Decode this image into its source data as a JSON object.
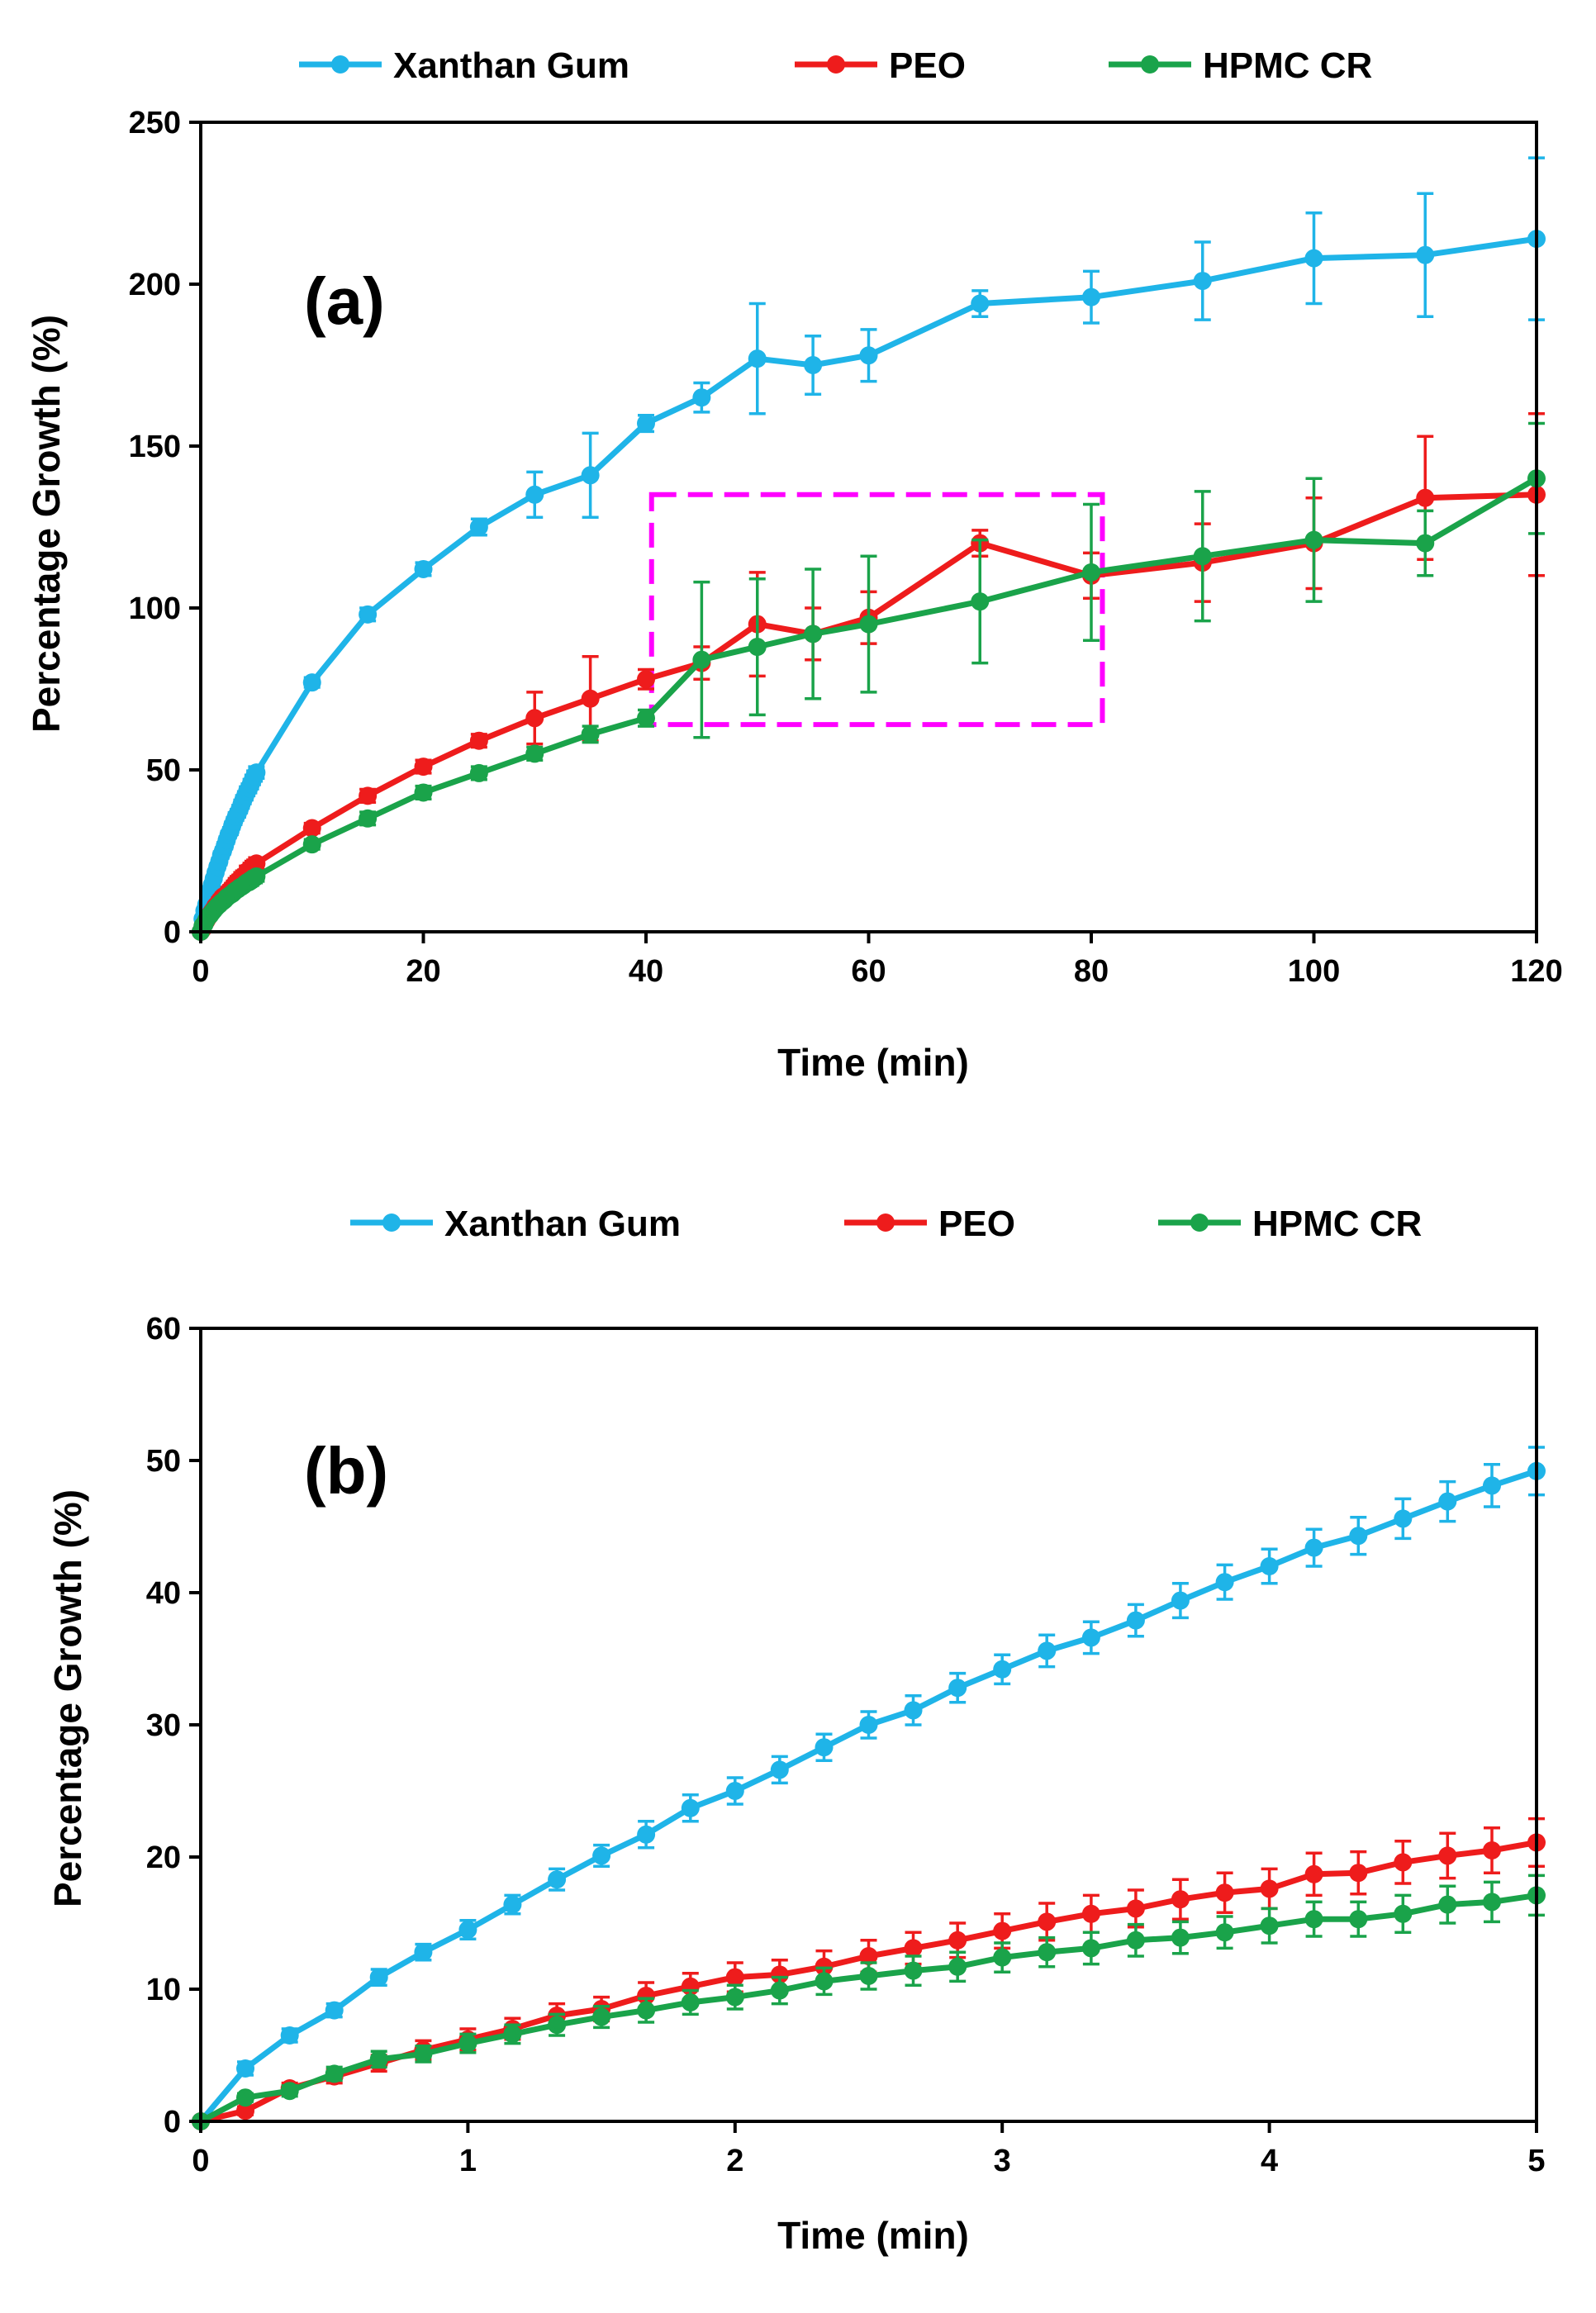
{
  "chart_data": [
    {
      "type": "line",
      "panel_label": "(a)",
      "xlabel": "Time (min)",
      "ylabel": "Percentage Growth (%)",
      "xlim": [
        0,
        120
      ],
      "ylim": [
        0,
        250
      ],
      "xticks": [
        0,
        20,
        40,
        60,
        80,
        100,
        120
      ],
      "yticks": [
        0,
        50,
        100,
        150,
        200,
        250
      ],
      "grid": false,
      "legend": {
        "placement": "top"
      },
      "highlight_box": {
        "x": [
          40.5,
          81
        ],
        "y": [
          64,
          135
        ],
        "color": "#ff00ff"
      },
      "series": [
        {
          "name": "Xanthan Gum",
          "color": "#1fb4e8",
          "x": [
            0,
            0.167,
            0.333,
            0.5,
            0.667,
            0.833,
            1,
            1.167,
            1.333,
            1.5,
            1.667,
            1.833,
            2,
            2.167,
            2.333,
            2.5,
            2.667,
            2.833,
            3,
            3.167,
            3.333,
            3.5,
            3.667,
            3.833,
            4,
            4.167,
            4.333,
            4.5,
            4.667,
            4.833,
            5,
            10,
            15,
            20,
            25,
            30,
            35,
            40,
            45,
            50,
            55,
            60,
            70,
            80,
            90,
            100,
            110,
            120
          ],
          "y": [
            0,
            4,
            6.5,
            8.4,
            10.9,
            12.8,
            14.5,
            16.4,
            18.3,
            20.1,
            21.7,
            23.7,
            25,
            26.6,
            28.3,
            30,
            31.1,
            32.8,
            34.2,
            35.6,
            36.6,
            37.9,
            39.4,
            40.8,
            42,
            43.4,
            44.3,
            45.6,
            46.9,
            48.1,
            49.2,
            77,
            98,
            112,
            125,
            135,
            141,
            157,
            165,
            177,
            175,
            178,
            194,
            196,
            201,
            208,
            209,
            214
          ],
          "err": [
            0,
            0.5,
            0.5,
            0.5,
            0.6,
            0.6,
            0.7,
            0.7,
            0.8,
            0.8,
            1,
            1,
            1,
            1,
            1,
            1,
            1.1,
            1.1,
            1.1,
            1.2,
            1.2,
            1.2,
            1.3,
            1.3,
            1.3,
            1.4,
            1.4,
            1.5,
            1.5,
            1.6,
            1.8,
            1.5,
            2,
            2,
            2.5,
            7,
            13,
            2.5,
            4.5,
            17,
            9,
            8,
            4,
            8,
            12,
            14,
            19,
            25
          ]
        },
        {
          "name": "PEO",
          "color": "#ee1c1c",
          "x": [
            0,
            0.167,
            0.333,
            0.5,
            0.667,
            0.833,
            1,
            1.167,
            1.333,
            1.5,
            1.667,
            1.833,
            2,
            2.167,
            2.333,
            2.5,
            2.667,
            2.833,
            3,
            3.167,
            3.333,
            3.5,
            3.667,
            3.833,
            4,
            4.167,
            4.333,
            4.5,
            4.667,
            4.833,
            5,
            10,
            15,
            20,
            25,
            30,
            35,
            40,
            45,
            50,
            55,
            60,
            70,
            80,
            90,
            100,
            110,
            120
          ],
          "y": [
            0,
            0.8,
            2.5,
            3.4,
            4.4,
            5.4,
            6.2,
            7,
            8,
            8.5,
            9.5,
            10.2,
            10.9,
            11.1,
            11.7,
            12.5,
            13.1,
            13.7,
            14.4,
            15.1,
            15.7,
            16.1,
            16.8,
            17.3,
            17.6,
            18.7,
            18.8,
            19.6,
            20.1,
            20.5,
            21.1,
            32,
            42,
            51,
            59,
            66,
            72,
            78,
            83,
            95,
            92,
            97,
            120,
            110,
            114,
            120,
            134,
            135
          ],
          "err": [
            0,
            0.3,
            0.4,
            0.5,
            0.6,
            0.7,
            0.8,
            0.8,
            0.9,
            0.9,
            1,
            1,
            1.1,
            1.1,
            1.2,
            1.2,
            1.2,
            1.3,
            1.3,
            1.4,
            1.4,
            1.4,
            1.5,
            1.5,
            1.5,
            1.6,
            1.6,
            1.6,
            1.7,
            1.7,
            1.8,
            1.5,
            2,
            2,
            2,
            8,
            13,
            3,
            5,
            16,
            8,
            8,
            4,
            7,
            12,
            14,
            19,
            25
          ]
        },
        {
          "name": "HPMC CR",
          "color": "#1aa34a",
          "x": [
            0,
            0.167,
            0.333,
            0.5,
            0.667,
            0.833,
            1,
            1.167,
            1.333,
            1.5,
            1.667,
            1.833,
            2,
            2.167,
            2.333,
            2.5,
            2.667,
            2.833,
            3,
            3.167,
            3.333,
            3.5,
            3.667,
            3.833,
            4,
            4.167,
            4.333,
            4.5,
            4.667,
            4.833,
            5,
            10,
            15,
            20,
            25,
            30,
            35,
            40,
            45,
            50,
            55,
            60,
            70,
            80,
            90,
            100,
            110,
            120
          ],
          "y": [
            0,
            1.8,
            2.3,
            3.6,
            4.7,
            5.1,
            5.9,
            6.6,
            7.3,
            7.9,
            8.4,
            9,
            9.4,
            9.9,
            10.6,
            11,
            11.4,
            11.7,
            12.4,
            12.8,
            13.1,
            13.7,
            13.9,
            14.3,
            14.8,
            15.3,
            15.3,
            15.7,
            16.4,
            16.6,
            17.1,
            27,
            35,
            43,
            49,
            55,
            61,
            66,
            84,
            88,
            92,
            95,
            102,
            111,
            116,
            121,
            120,
            140
          ],
          "err": [
            0,
            0.3,
            0.4,
            0.5,
            0.6,
            0.6,
            0.7,
            0.7,
            0.8,
            0.8,
            0.9,
            0.9,
            0.9,
            1,
            1,
            1,
            1.1,
            1.1,
            1.1,
            1.1,
            1.2,
            1.2,
            1.2,
            1.2,
            1.3,
            1.3,
            1.3,
            1.4,
            1.4,
            1.5,
            1.5,
            1.5,
            2,
            2,
            2,
            2,
            2.5,
            2.5,
            24,
            21,
            20,
            21,
            19,
            21,
            20,
            19,
            10,
            17
          ]
        }
      ]
    },
    {
      "type": "line",
      "panel_label": "(b)",
      "xlabel": "Time (min)",
      "ylabel": "Percentage Growth (%)",
      "xlim": [
        0,
        5
      ],
      "ylim": [
        0,
        60
      ],
      "xticks": [
        0,
        1,
        2,
        3,
        4,
        5
      ],
      "yticks": [
        0,
        10,
        20,
        30,
        40,
        50,
        60
      ],
      "grid": false,
      "legend": {
        "placement": "top"
      },
      "series": [
        {
          "name": "Xanthan Gum",
          "color": "#1fb4e8",
          "x": [
            0,
            0.167,
            0.333,
            0.5,
            0.667,
            0.833,
            1,
            1.167,
            1.333,
            1.5,
            1.667,
            1.833,
            2,
            2.167,
            2.333,
            2.5,
            2.667,
            2.833,
            3,
            3.167,
            3.333,
            3.5,
            3.667,
            3.833,
            4,
            4.167,
            4.333,
            4.5,
            4.667,
            4.833,
            5
          ],
          "y": [
            0,
            4,
            6.5,
            8.4,
            10.9,
            12.8,
            14.5,
            16.4,
            18.3,
            20.1,
            21.7,
            23.7,
            25,
            26.6,
            28.3,
            30,
            31.1,
            32.8,
            34.2,
            35.6,
            36.6,
            37.9,
            39.4,
            40.8,
            42,
            43.4,
            44.3,
            45.6,
            46.9,
            48.1,
            49.2
          ],
          "err": [
            0,
            0.5,
            0.5,
            0.5,
            0.6,
            0.6,
            0.7,
            0.7,
            0.8,
            0.8,
            1,
            1,
            1,
            1,
            1,
            1,
            1.1,
            1.1,
            1.1,
            1.2,
            1.2,
            1.2,
            1.3,
            1.3,
            1.3,
            1.4,
            1.4,
            1.5,
            1.5,
            1.6,
            1.8
          ]
        },
        {
          "name": "PEO",
          "color": "#ee1c1c",
          "x": [
            0,
            0.167,
            0.333,
            0.5,
            0.667,
            0.833,
            1,
            1.167,
            1.333,
            1.5,
            1.667,
            1.833,
            2,
            2.167,
            2.333,
            2.5,
            2.667,
            2.833,
            3,
            3.167,
            3.333,
            3.5,
            3.667,
            3.833,
            4,
            4.167,
            4.333,
            4.5,
            4.667,
            4.833,
            5
          ],
          "y": [
            0,
            0.8,
            2.5,
            3.4,
            4.4,
            5.4,
            6.2,
            7,
            8,
            8.5,
            9.5,
            10.2,
            10.9,
            11.1,
            11.7,
            12.5,
            13.1,
            13.7,
            14.4,
            15.1,
            15.7,
            16.1,
            16.8,
            17.3,
            17.6,
            18.7,
            18.8,
            19.6,
            20.1,
            20.5,
            21.1
          ],
          "err": [
            0,
            0.3,
            0.4,
            0.5,
            0.6,
            0.7,
            0.8,
            0.8,
            0.9,
            0.9,
            1,
            1,
            1.1,
            1.1,
            1.2,
            1.2,
            1.2,
            1.3,
            1.3,
            1.4,
            1.4,
            1.4,
            1.5,
            1.5,
            1.5,
            1.6,
            1.6,
            1.6,
            1.7,
            1.7,
            1.8
          ]
        },
        {
          "name": "HPMC CR",
          "color": "#1aa34a",
          "x": [
            0,
            0.167,
            0.333,
            0.5,
            0.667,
            0.833,
            1,
            1.167,
            1.333,
            1.5,
            1.667,
            1.833,
            2,
            2.167,
            2.333,
            2.5,
            2.667,
            2.833,
            3,
            3.167,
            3.333,
            3.5,
            3.667,
            3.833,
            4,
            4.167,
            4.333,
            4.5,
            4.667,
            4.833,
            5
          ],
          "y": [
            0,
            1.8,
            2.3,
            3.6,
            4.7,
            5.1,
            5.9,
            6.6,
            7.3,
            7.9,
            8.4,
            9,
            9.4,
            9.9,
            10.6,
            11,
            11.4,
            11.7,
            12.4,
            12.8,
            13.1,
            13.7,
            13.9,
            14.3,
            14.8,
            15.3,
            15.3,
            15.7,
            16.4,
            16.6,
            17.1
          ],
          "err": [
            0,
            0.3,
            0.4,
            0.5,
            0.6,
            0.6,
            0.7,
            0.7,
            0.8,
            0.8,
            0.9,
            0.9,
            0.9,
            1,
            1,
            1,
            1.1,
            1.1,
            1.1,
            1.1,
            1.2,
            1.2,
            1.2,
            1.2,
            1.3,
            1.3,
            1.3,
            1.4,
            1.4,
            1.5,
            1.5
          ]
        }
      ]
    }
  ]
}
